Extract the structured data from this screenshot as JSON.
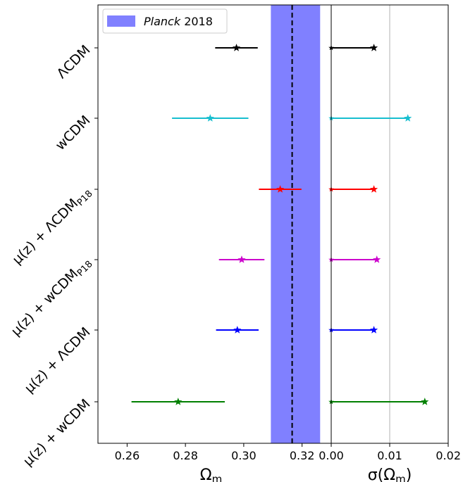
{
  "chart_data": [
    {
      "type": "scatter",
      "xlabel_main": "Ω",
      "xlabel_sub": "m",
      "xlim": [
        0.25,
        0.33
      ],
      "xticks": [
        "0.26",
        "0.28",
        "0.30",
        "0.32"
      ],
      "xtick_values": [
        0.26,
        0.28,
        0.3,
        0.32
      ],
      "legend": {
        "label_italic": "Planck",
        "label_rest": " 2018",
        "placement": "top-left",
        "color": "#8080ff"
      },
      "reference": {
        "value": 0.3166,
        "band": [
          0.3093,
          0.3262
        ],
        "color": "#8080ff"
      },
      "categories": [
        {
          "main": "ΛCDM",
          "sub": "",
          "tail": ""
        },
        {
          "main": "wCDM",
          "sub": "",
          "tail": ""
        },
        {
          "main": "μ(z) + ΛCDM",
          "sub": "P18",
          "tail": ""
        },
        {
          "main": "μ(z) + wCDM",
          "sub": "P18",
          "tail": ""
        },
        {
          "main": "μ(z) + ΛCDM",
          "sub": "",
          "tail": ""
        },
        {
          "main": "μ(z) + wCDM",
          "sub": "",
          "tail": ""
        }
      ],
      "points": [
        {
          "value": 0.2975,
          "err": 0.0073,
          "color": "#000000"
        },
        {
          "value": 0.2885,
          "err": 0.0131,
          "color": "#17becf"
        },
        {
          "value": 0.3125,
          "err": 0.0073,
          "color": "#ff0000"
        },
        {
          "value": 0.2993,
          "err": 0.0078,
          "color": "#cc00cc"
        },
        {
          "value": 0.2978,
          "err": 0.0073,
          "color": "#0000ff"
        },
        {
          "value": 0.2775,
          "err": 0.016,
          "color": "#008000"
        }
      ]
    },
    {
      "type": "scatter",
      "xlabel_main": "σ(Ω",
      "xlabel_sub": "m",
      "xlabel_close": ")",
      "xlim": [
        0.0,
        0.02
      ],
      "xticks": [
        "0.00",
        "0.01",
        "0.02"
      ],
      "xtick_values": [
        0.0,
        0.01,
        0.02
      ],
      "vline": 0.01,
      "values": [
        0.0073,
        0.0131,
        0.0073,
        0.0078,
        0.0073,
        0.016
      ],
      "colors": [
        "#000000",
        "#17becf",
        "#ff0000",
        "#cc00cc",
        "#0000ff",
        "#008000"
      ]
    }
  ]
}
